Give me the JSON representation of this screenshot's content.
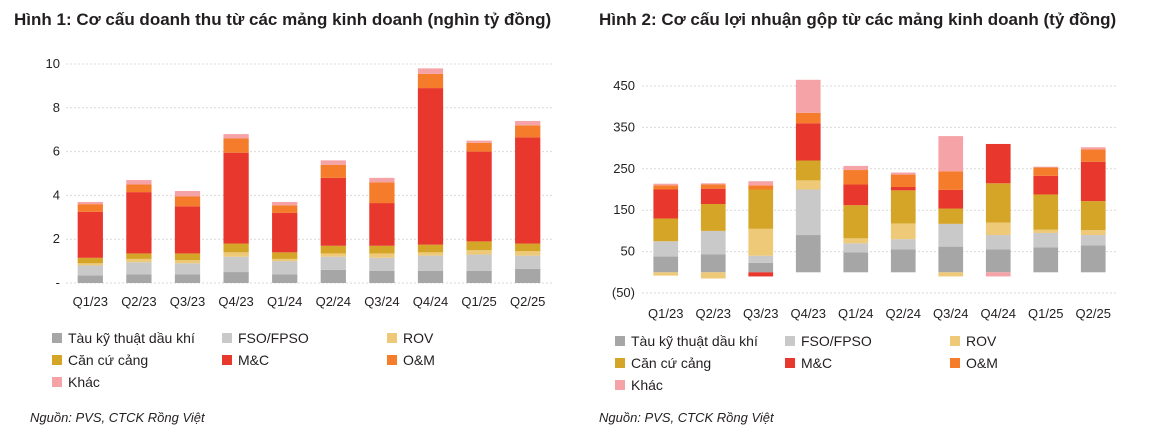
{
  "charts": [
    {
      "title": "Hình 1: Cơ cấu doanh thu từ các mảng kinh doanh (nghìn tỷ đồng)",
      "source": "Nguồn: PVS, CTCK Rồng Việt",
      "y_tick_labels": [
        "-",
        "2",
        "4",
        "6",
        "8",
        "10"
      ]
    },
    {
      "title": "Hình 2: Cơ cấu lợi nhuận gộp từ các mảng kinh doanh (tỷ đồng)",
      "source": "Nguồn: PVS, CTCK Rồng Việt",
      "y_tick_labels": [
        "(50)",
        "50",
        "150",
        "250",
        "350",
        "450"
      ]
    }
  ],
  "legend": [
    {
      "name": "Tàu kỹ thuật dầu khí",
      "color": "#a6a6a6"
    },
    {
      "name": "FSO/FPSO",
      "color": "#c9c9c9"
    },
    {
      "name": "ROV",
      "color": "#edc978"
    },
    {
      "name": "Căn cứ cảng",
      "color": "#d5a528"
    },
    {
      "name": "M&C",
      "color": "#e8372c"
    },
    {
      "name": "O&M",
      "color": "#f47c2a"
    },
    {
      "name": "Khác",
      "color": "#f5a3a6"
    }
  ],
  "chart_data": [
    {
      "type": "bar",
      "stacked": true,
      "title": "Hình 1: Cơ cấu doanh thu từ các mảng kinh doanh (nghìn tỷ đồng)",
      "categories": [
        "Q1/23",
        "Q2/23",
        "Q3/23",
        "Q4/23",
        "Q1/24",
        "Q2/24",
        "Q3/24",
        "Q4/24",
        "Q1/25",
        "Q2/25"
      ],
      "ylim": [
        0,
        10
      ],
      "yticks": [
        0,
        2,
        4,
        6,
        8,
        10
      ],
      "grid": true,
      "legend_position": "bottom",
      "series": [
        {
          "name": "Tàu kỹ thuật dầu khí",
          "color": "#a6a6a6",
          "values": [
            0.35,
            0.4,
            0.4,
            0.5,
            0.4,
            0.6,
            0.55,
            0.55,
            0.55,
            0.65
          ]
        },
        {
          "name": "FSO/FPSO",
          "color": "#c9c9c9",
          "values": [
            0.45,
            0.55,
            0.5,
            0.7,
            0.6,
            0.6,
            0.6,
            0.7,
            0.75,
            0.6
          ]
        },
        {
          "name": "ROV",
          "color": "#edc978",
          "values": [
            0.1,
            0.15,
            0.15,
            0.2,
            0.1,
            0.15,
            0.2,
            0.15,
            0.2,
            0.2
          ]
        },
        {
          "name": "Căn cứ cảng",
          "color": "#d5a528",
          "values": [
            0.25,
            0.25,
            0.3,
            0.4,
            0.3,
            0.35,
            0.35,
            0.35,
            0.4,
            0.35
          ]
        },
        {
          "name": "M&C",
          "color": "#e8372c",
          "values": [
            2.1,
            2.8,
            2.15,
            4.15,
            1.8,
            3.1,
            1.95,
            7.15,
            4.1,
            4.85
          ]
        },
        {
          "name": "O&M",
          "color": "#f47c2a",
          "values": [
            0.35,
            0.35,
            0.45,
            0.65,
            0.35,
            0.6,
            0.95,
            0.65,
            0.4,
            0.55
          ]
        },
        {
          "name": "Khác",
          "color": "#f5a3a6",
          "values": [
            0.1,
            0.2,
            0.25,
            0.2,
            0.15,
            0.2,
            0.2,
            0.25,
            0.1,
            0.2
          ]
        }
      ]
    },
    {
      "type": "bar",
      "stacked": true,
      "title": "Hình 2: Cơ cấu lợi nhuận gộp từ các mảng kinh doanh (tỷ đồng)",
      "categories": [
        "Q1/23",
        "Q2/23",
        "Q3/23",
        "Q4/23",
        "Q1/24",
        "Q2/24",
        "Q3/24",
        "Q4/24",
        "Q1/25",
        "Q2/25"
      ],
      "ylim": [
        -50,
        450
      ],
      "yticks": [
        -50,
        50,
        150,
        250,
        350,
        450
      ],
      "grid": true,
      "legend_position": "bottom",
      "series": [
        {
          "name": "Tàu kỹ thuật dầu khí",
          "color": "#a6a6a6",
          "values": [
            38,
            43,
            23,
            90,
            48,
            55,
            62,
            55,
            60,
            65
          ]
        },
        {
          "name": "FSO/FPSO",
          "color": "#c9c9c9",
          "values": [
            37,
            57,
            17,
            110,
            22,
            25,
            55,
            35,
            35,
            25
          ]
        },
        {
          "name": "ROV",
          "color": "#edc978",
          "values": [
            -8,
            -15,
            65,
            22,
            12,
            38,
            -10,
            30,
            8,
            12
          ]
        },
        {
          "name": "Căn cứ cảng",
          "color": "#d5a528",
          "values": [
            55,
            65,
            95,
            48,
            80,
            80,
            37,
            95,
            85,
            70
          ]
        },
        {
          "name": "M&C",
          "color": "#e8372c",
          "values": [
            70,
            37,
            -10,
            90,
            50,
            8,
            45,
            95,
            45,
            95
          ]
        },
        {
          "name": "O&M",
          "color": "#f47c2a",
          "values": [
            10,
            10,
            10,
            25,
            35,
            30,
            45,
            0,
            20,
            30
          ]
        },
        {
          "name": "Khác",
          "color": "#f5a3a6",
          "values": [
            4,
            3,
            10,
            80,
            10,
            5,
            85,
            -10,
            2,
            5
          ]
        }
      ]
    }
  ]
}
